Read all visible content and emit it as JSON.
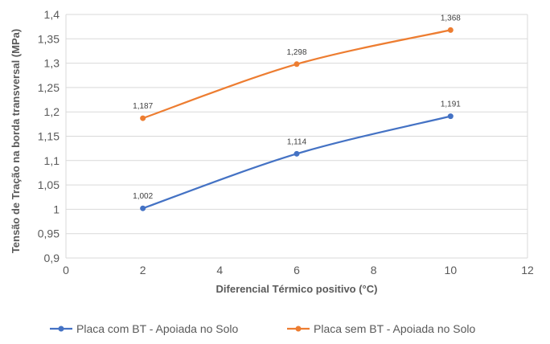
{
  "chart_data": {
    "type": "line",
    "title": "",
    "xlabel": "Diferencial Térmico positivo (°C)",
    "ylabel": "Tensão de Tração na borda transversal (MPa)",
    "xlim": [
      0,
      12
    ],
    "ylim": [
      0.9,
      1.4
    ],
    "x_ticks": [
      0,
      2,
      4,
      6,
      8,
      10,
      12
    ],
    "x_tick_labels": [
      "0",
      "2",
      "4",
      "6",
      "8",
      "10",
      "12"
    ],
    "y_ticks": [
      0.9,
      0.95,
      1.0,
      1.05,
      1.1,
      1.15,
      1.2,
      1.25,
      1.3,
      1.35,
      1.4
    ],
    "y_tick_labels": [
      "0,9",
      "0,95",
      "1",
      "1,05",
      "1,1",
      "1,15",
      "1,2",
      "1,25",
      "1,3",
      "1,35",
      "1,4"
    ],
    "grid": "horizontal",
    "legend": "bottom",
    "series": [
      {
        "name": "Placa com BT - Apoiada no Solo",
        "color": "#4472C4",
        "x": [
          2,
          6,
          10
        ],
        "y": [
          1.002,
          1.114,
          1.191
        ],
        "labels": [
          "1,002",
          "1,114",
          "1,191"
        ]
      },
      {
        "name": "Placa sem BT - Apoiada no Solo",
        "color": "#ED7D31",
        "x": [
          2,
          6,
          10
        ],
        "y": [
          1.187,
          1.298,
          1.368
        ],
        "labels": [
          "1,187",
          "1,298",
          "1,368"
        ]
      }
    ]
  }
}
